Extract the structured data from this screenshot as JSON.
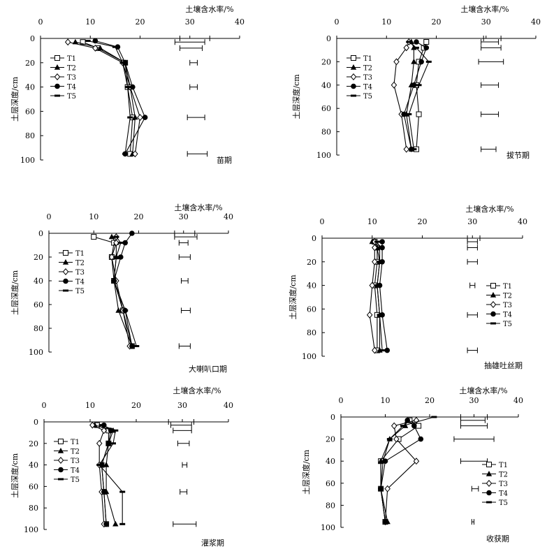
{
  "chart_data": [
    {
      "type": "line",
      "panel": "苗期",
      "xlabel": "土壤含水率/%",
      "ylabel": "土层深度/cm",
      "xlim": [
        0,
        40
      ],
      "ylim": [
        0,
        100
      ],
      "xticks": [
        "0",
        "10",
        "20",
        "30",
        "40"
      ],
      "yticks": [
        "0",
        "20",
        "40",
        "60",
        "80",
        "100"
      ],
      "y_inverted": true,
      "legend_position": "left",
      "series": [
        {
          "name": "T1",
          "marker": "square",
          "x": [
            8.5,
            11.5,
            17.0,
            17.5,
            18.5,
            18.0
          ],
          "y": [
            3,
            8,
            20,
            40,
            65,
            95
          ]
        },
        {
          "name": "T2",
          "marker": "triangle",
          "x": [
            7.0,
            12.0,
            17.0,
            18.0,
            19.0,
            18.5
          ],
          "y": [
            3,
            8,
            20,
            40,
            65,
            95
          ]
        },
        {
          "name": "T3",
          "marker": "diamond",
          "x": [
            5.5,
            11.0,
            16.5,
            18.0,
            20.0,
            19.0
          ],
          "y": [
            3,
            8,
            20,
            40,
            65,
            95
          ]
        },
        {
          "name": "T4",
          "marker": "circle",
          "x": [
            11.0,
            15.5,
            17.0,
            18.5,
            21.0,
            17.0
          ],
          "y": [
            2,
            7,
            20,
            40,
            65,
            95
          ]
        },
        {
          "name": "T5",
          "marker": "dash",
          "x": [
            9.5,
            15.0,
            16.5,
            17.5,
            18.0,
            17.0
          ],
          "y": [
            2,
            7,
            20,
            40,
            65,
            95
          ]
        }
      ],
      "error_bars": [
        {
          "y": 0,
          "x_low": 28.0,
          "x_high": 34.0
        },
        {
          "y": 3,
          "x_low": 27.0,
          "x_high": 33.0
        },
        {
          "y": 8,
          "x_low": 28.0,
          "x_high": 32.5
        },
        {
          "y": 20,
          "x_low": 30.0,
          "x_high": 31.5
        },
        {
          "y": 40,
          "x_low": 30.0,
          "x_high": 31.5
        },
        {
          "y": 65,
          "x_low": 29.5,
          "x_high": 33.0
        },
        {
          "y": 95,
          "x_low": 29.5,
          "x_high": 33.5
        }
      ]
    },
    {
      "type": "line",
      "panel": "拔节期",
      "xlabel": "土壤含水率/%",
      "ylabel": "土层深度/cm",
      "xlim": [
        0,
        40
      ],
      "ylim": [
        0,
        100
      ],
      "xticks": [
        "0",
        "10",
        "20",
        "30",
        "40"
      ],
      "yticks": [
        "0",
        "20",
        "40",
        "60",
        "80",
        "100"
      ],
      "y_inverted": true,
      "legend_position": "left",
      "series": [
        {
          "name": "T1",
          "marker": "square",
          "x": [
            18.0,
            17.5,
            16.5,
            16.0,
            16.5,
            16.0
          ],
          "y": [
            3,
            8,
            20,
            40,
            65,
            95
          ]
        },
        {
          "name": "T2",
          "marker": "triangle",
          "x": [
            15.0,
            15.5,
            15.5,
            15.0,
            14.0,
            15.0
          ],
          "y": [
            3,
            8,
            20,
            40,
            65,
            95
          ]
        },
        {
          "name": "T3",
          "marker": "diamond",
          "x": [
            14.5,
            14.0,
            12.0,
            11.5,
            13.0,
            14.0
          ],
          "y": [
            3,
            8,
            20,
            40,
            65,
            95
          ]
        },
        {
          "name": "T4",
          "marker": "circle",
          "x": [
            16.0,
            18.0,
            17.0,
            15.5,
            13.5,
            15.0
          ],
          "y": [
            3,
            8,
            20,
            40,
            65,
            95
          ]
        },
        {
          "name": "T5",
          "marker": "dash",
          "x": [
            14.5,
            16.0,
            18.5,
            16.5,
            14.5,
            15.5
          ],
          "y": [
            3,
            8,
            20,
            40,
            65,
            95
          ]
        }
      ],
      "error_bars": [
        {
          "y": 0,
          "x_low": 29.5,
          "x_high": 33.0
        },
        {
          "y": 3,
          "x_low": 29.0,
          "x_high": 32.5
        },
        {
          "y": 8,
          "x_low": 29.0,
          "x_high": 33.0
        },
        {
          "y": 20,
          "x_low": 28.5,
          "x_high": 33.5
        },
        {
          "y": 40,
          "x_low": 29.0,
          "x_high": 32.5
        },
        {
          "y": 65,
          "x_low": 29.0,
          "x_high": 32.5
        },
        {
          "y": 95,
          "x_low": 29.0,
          "x_high": 32.0
        }
      ]
    },
    {
      "type": "line",
      "panel": "大喇叭口期",
      "xlabel": "土壤含水率/%",
      "ylabel": "土层深度/cm",
      "xlim": [
        0,
        40
      ],
      "ylim": [
        0,
        100
      ],
      "xticks": [
        "0",
        "10",
        "20",
        "30",
        "40"
      ],
      "yticks": [
        "0",
        "20",
        "40",
        "60",
        "80",
        "100"
      ],
      "y_inverted": true,
      "legend_position": "left",
      "series": [
        {
          "name": "T1",
          "marker": "square",
          "x": [
            10.0,
            14.5,
            14.0,
            14.5,
            16.5,
            18.5
          ],
          "y": [
            3,
            8,
            20,
            40,
            65,
            95
          ]
        },
        {
          "name": "T2",
          "marker": "triangle",
          "x": [
            14.0,
            15.0,
            15.0,
            14.5,
            15.5,
            18.5
          ],
          "y": [
            3,
            8,
            20,
            40,
            65,
            95
          ]
        },
        {
          "name": "T3",
          "marker": "diamond",
          "x": [
            15.0,
            15.0,
            14.0,
            15.0,
            16.5,
            18.0
          ],
          "y": [
            3,
            8,
            20,
            40,
            65,
            95
          ]
        },
        {
          "name": "T4",
          "marker": "circle",
          "x": [
            18.5,
            17.0,
            16.0,
            14.5,
            17.0,
            18.5
          ],
          "y": [
            0,
            8,
            20,
            40,
            65,
            95
          ]
        },
        {
          "name": "T5",
          "marker": "dash",
          "x": [
            15.0,
            16.0,
            15.0,
            14.5,
            17.0,
            19.5
          ],
          "y": [
            3,
            8,
            20,
            40,
            65,
            95
          ]
        }
      ],
      "error_bars": [
        {
          "y": 0,
          "x_low": 28.0,
          "x_high": 32.5
        },
        {
          "y": 3,
          "x_low": 28.0,
          "x_high": 33.0
        },
        {
          "y": 8,
          "x_low": 29.0,
          "x_high": 31.0
        },
        {
          "y": 20,
          "x_low": 29.0,
          "x_high": 31.5
        },
        {
          "y": 40,
          "x_low": 29.5,
          "x_high": 31.0
        },
        {
          "y": 65,
          "x_low": 29.5,
          "x_high": 31.5
        },
        {
          "y": 95,
          "x_low": 29.0,
          "x_high": 31.5
        }
      ]
    },
    {
      "type": "line",
      "panel": "抽雄吐丝期",
      "xlabel": "土壤含水率/%",
      "ylabel": "土层深度/cm",
      "xlim": [
        0,
        40
      ],
      "ylim": [
        0,
        100
      ],
      "xticks": [
        "0",
        "10",
        "20",
        "30",
        "40"
      ],
      "yticks": [
        "0",
        "20",
        "40",
        "60",
        "80",
        "100"
      ],
      "y_inverted": true,
      "legend_position": "right",
      "series": [
        {
          "name": "T1",
          "marker": "square",
          "x": [
            10.5,
            11.0,
            11.0,
            10.5,
            11.0,
            11.0
          ],
          "y": [
            3,
            8,
            20,
            40,
            65,
            95
          ]
        },
        {
          "name": "T2",
          "marker": "triangle",
          "x": [
            10.0,
            11.0,
            11.5,
            11.0,
            11.5,
            11.5
          ],
          "y": [
            3,
            8,
            20,
            40,
            65,
            95
          ]
        },
        {
          "name": "T3",
          "marker": "diamond",
          "x": [
            10.5,
            10.5,
            10.5,
            10.0,
            9.5,
            10.5
          ],
          "y": [
            3,
            8,
            20,
            40,
            65,
            95
          ]
        },
        {
          "name": "T4",
          "marker": "circle",
          "x": [
            12.0,
            12.0,
            12.0,
            11.5,
            12.0,
            13.0
          ],
          "y": [
            3,
            8,
            20,
            40,
            65,
            95
          ]
        },
        {
          "name": "T5",
          "marker": "dash",
          "x": [
            11.0,
            11.5,
            11.5,
            11.0,
            11.5,
            12.0
          ],
          "y": [
            3,
            8,
            20,
            40,
            65,
            95
          ]
        }
      ],
      "error_bars": [
        {
          "y": 0,
          "x_low": 29.0,
          "x_high": 31.5
        },
        {
          "y": 3,
          "x_low": 29.0,
          "x_high": 31.0
        },
        {
          "y": 8,
          "x_low": 29.0,
          "x_high": 31.0
        },
        {
          "y": 20,
          "x_low": 29.0,
          "x_high": 31.0
        },
        {
          "y": 40,
          "x_low": 29.5,
          "x_high": 30.5
        },
        {
          "y": 65,
          "x_low": 29.0,
          "x_high": 31.0
        },
        {
          "y": 95,
          "x_low": 29.0,
          "x_high": 31.0
        }
      ]
    },
    {
      "type": "line",
      "panel": "灌浆期",
      "xlabel": "土壤含水率/%",
      "ylabel": "土层深度/cm",
      "xlim": [
        0,
        40
      ],
      "ylim": [
        0,
        100
      ],
      "xticks": [
        "0",
        "10",
        "20",
        "30",
        "40"
      ],
      "yticks": [
        "0",
        "20",
        "40",
        "60",
        "80",
        "100"
      ],
      "y_inverted": true,
      "legend_position": "left",
      "series": [
        {
          "name": "T1",
          "marker": "square",
          "x": [
            11.5,
            14.0,
            14.0,
            12.5,
            13.0,
            13.5
          ],
          "y": [
            3,
            8,
            20,
            40,
            65,
            95
          ]
        },
        {
          "name": "T2",
          "marker": "triangle",
          "x": [
            11.0,
            15.0,
            14.0,
            13.5,
            13.5,
            15.5
          ],
          "y": [
            3,
            8,
            20,
            40,
            65,
            95
          ]
        },
        {
          "name": "T3",
          "marker": "diamond",
          "x": [
            10.5,
            13.0,
            12.0,
            12.0,
            12.5,
            13.0
          ],
          "y": [
            3,
            8,
            20,
            40,
            65,
            95
          ]
        },
        {
          "name": "T4",
          "marker": "circle",
          "x": [
            13.0,
            14.5,
            14.0,
            12.5,
            13.0,
            13.5
          ],
          "y": [
            3,
            8,
            20,
            40,
            65,
            95
          ]
        },
        {
          "name": "T5",
          "marker": "dash",
          "x": [
            12.5,
            15.5,
            15.0,
            12.0,
            17.0,
            17.0
          ],
          "y": [
            3,
            8,
            20,
            40,
            65,
            95
          ]
        }
      ],
      "error_bars": [
        {
          "y": 0,
          "x_low": 27.0,
          "x_high": 32.5
        },
        {
          "y": 3,
          "x_low": 27.5,
          "x_high": 32.0
        },
        {
          "y": 8,
          "x_low": 28.0,
          "x_high": 32.0
        },
        {
          "y": 20,
          "x_low": 29.0,
          "x_high": 31.5
        },
        {
          "y": 40,
          "x_low": 30.0,
          "x_high": 31.0
        },
        {
          "y": 65,
          "x_low": 29.5,
          "x_high": 31.0
        },
        {
          "y": 95,
          "x_low": 28.0,
          "x_high": 33.0
        }
      ]
    },
    {
      "type": "line",
      "panel": "收获期",
      "xlabel": "土壤含水率/%",
      "ylabel": "土层深度/cm",
      "xlim": [
        0,
        40
      ],
      "ylim": [
        0,
        100
      ],
      "xticks": [
        "0",
        "10",
        "20",
        "30",
        "40"
      ],
      "yticks": [
        "0",
        "20",
        "40",
        "60",
        "80",
        "100"
      ],
      "y_inverted": true,
      "legend_position": "right",
      "series": [
        {
          "name": "T1",
          "marker": "square",
          "x": [
            15.5,
            17.5,
            13.0,
            9.0,
            9.0,
            10.0
          ],
          "y": [
            3,
            8,
            20,
            40,
            65,
            95
          ]
        },
        {
          "name": "T2",
          "marker": "triangle",
          "x": [
            15.0,
            14.5,
            11.0,
            9.0,
            9.0,
            10.5
          ],
          "y": [
            3,
            8,
            20,
            40,
            65,
            95
          ]
        },
        {
          "name": "T3",
          "marker": "diamond",
          "x": [
            17.0,
            12.0,
            12.5,
            17.0,
            10.5,
            10.0
          ],
          "y": [
            3,
            8,
            20,
            40,
            65,
            95
          ]
        },
        {
          "name": "T4",
          "marker": "circle",
          "x": [
            15.0,
            16.5,
            18.0,
            10.0,
            9.0,
            10.0
          ],
          "y": [
            3,
            8,
            20,
            40,
            65,
            95
          ]
        },
        {
          "name": "T5",
          "marker": "dash",
          "x": [
            21.0,
            14.0,
            11.0,
            9.5,
            9.0,
            10.0
          ],
          "y": [
            0,
            8,
            20,
            40,
            65,
            95
          ]
        }
      ],
      "error_bars": [
        {
          "y": 0,
          "x_low": 27.0,
          "x_high": 33.0
        },
        {
          "y": 3,
          "x_low": 27.0,
          "x_high": 32.5
        },
        {
          "y": 8,
          "x_low": 27.0,
          "x_high": 33.0
        },
        {
          "y": 20,
          "x_low": 25.5,
          "x_high": 34.5
        },
        {
          "y": 40,
          "x_low": 27.0,
          "x_high": 33.0
        },
        {
          "y": 65,
          "x_low": 29.5,
          "x_high": 31.0
        },
        {
          "y": 95,
          "x_low": 29.5,
          "x_high": 30.0
        }
      ]
    }
  ]
}
